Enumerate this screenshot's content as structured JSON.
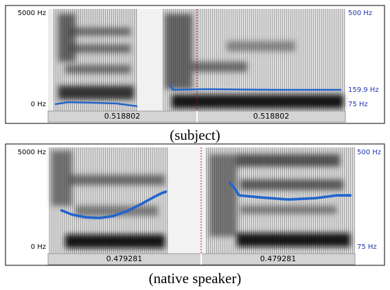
{
  "panels": [
    {
      "left_top": "5000 Hz",
      "left_bottom": "0 Hz",
      "right_top": "500 Hz",
      "right_mid": "159.9 Hz",
      "right_bottom": "75 Hz",
      "time_left": "0.518802",
      "time_right": "0.518802",
      "caption": "(subject)"
    },
    {
      "left_top": "5000 Hz",
      "left_bottom": "0 Hz",
      "right_top": "500 Hz",
      "right_bottom": "75 Hz",
      "time_left": "0.479281",
      "time_right": "0.479281",
      "caption": "(native speaker)"
    }
  ]
}
